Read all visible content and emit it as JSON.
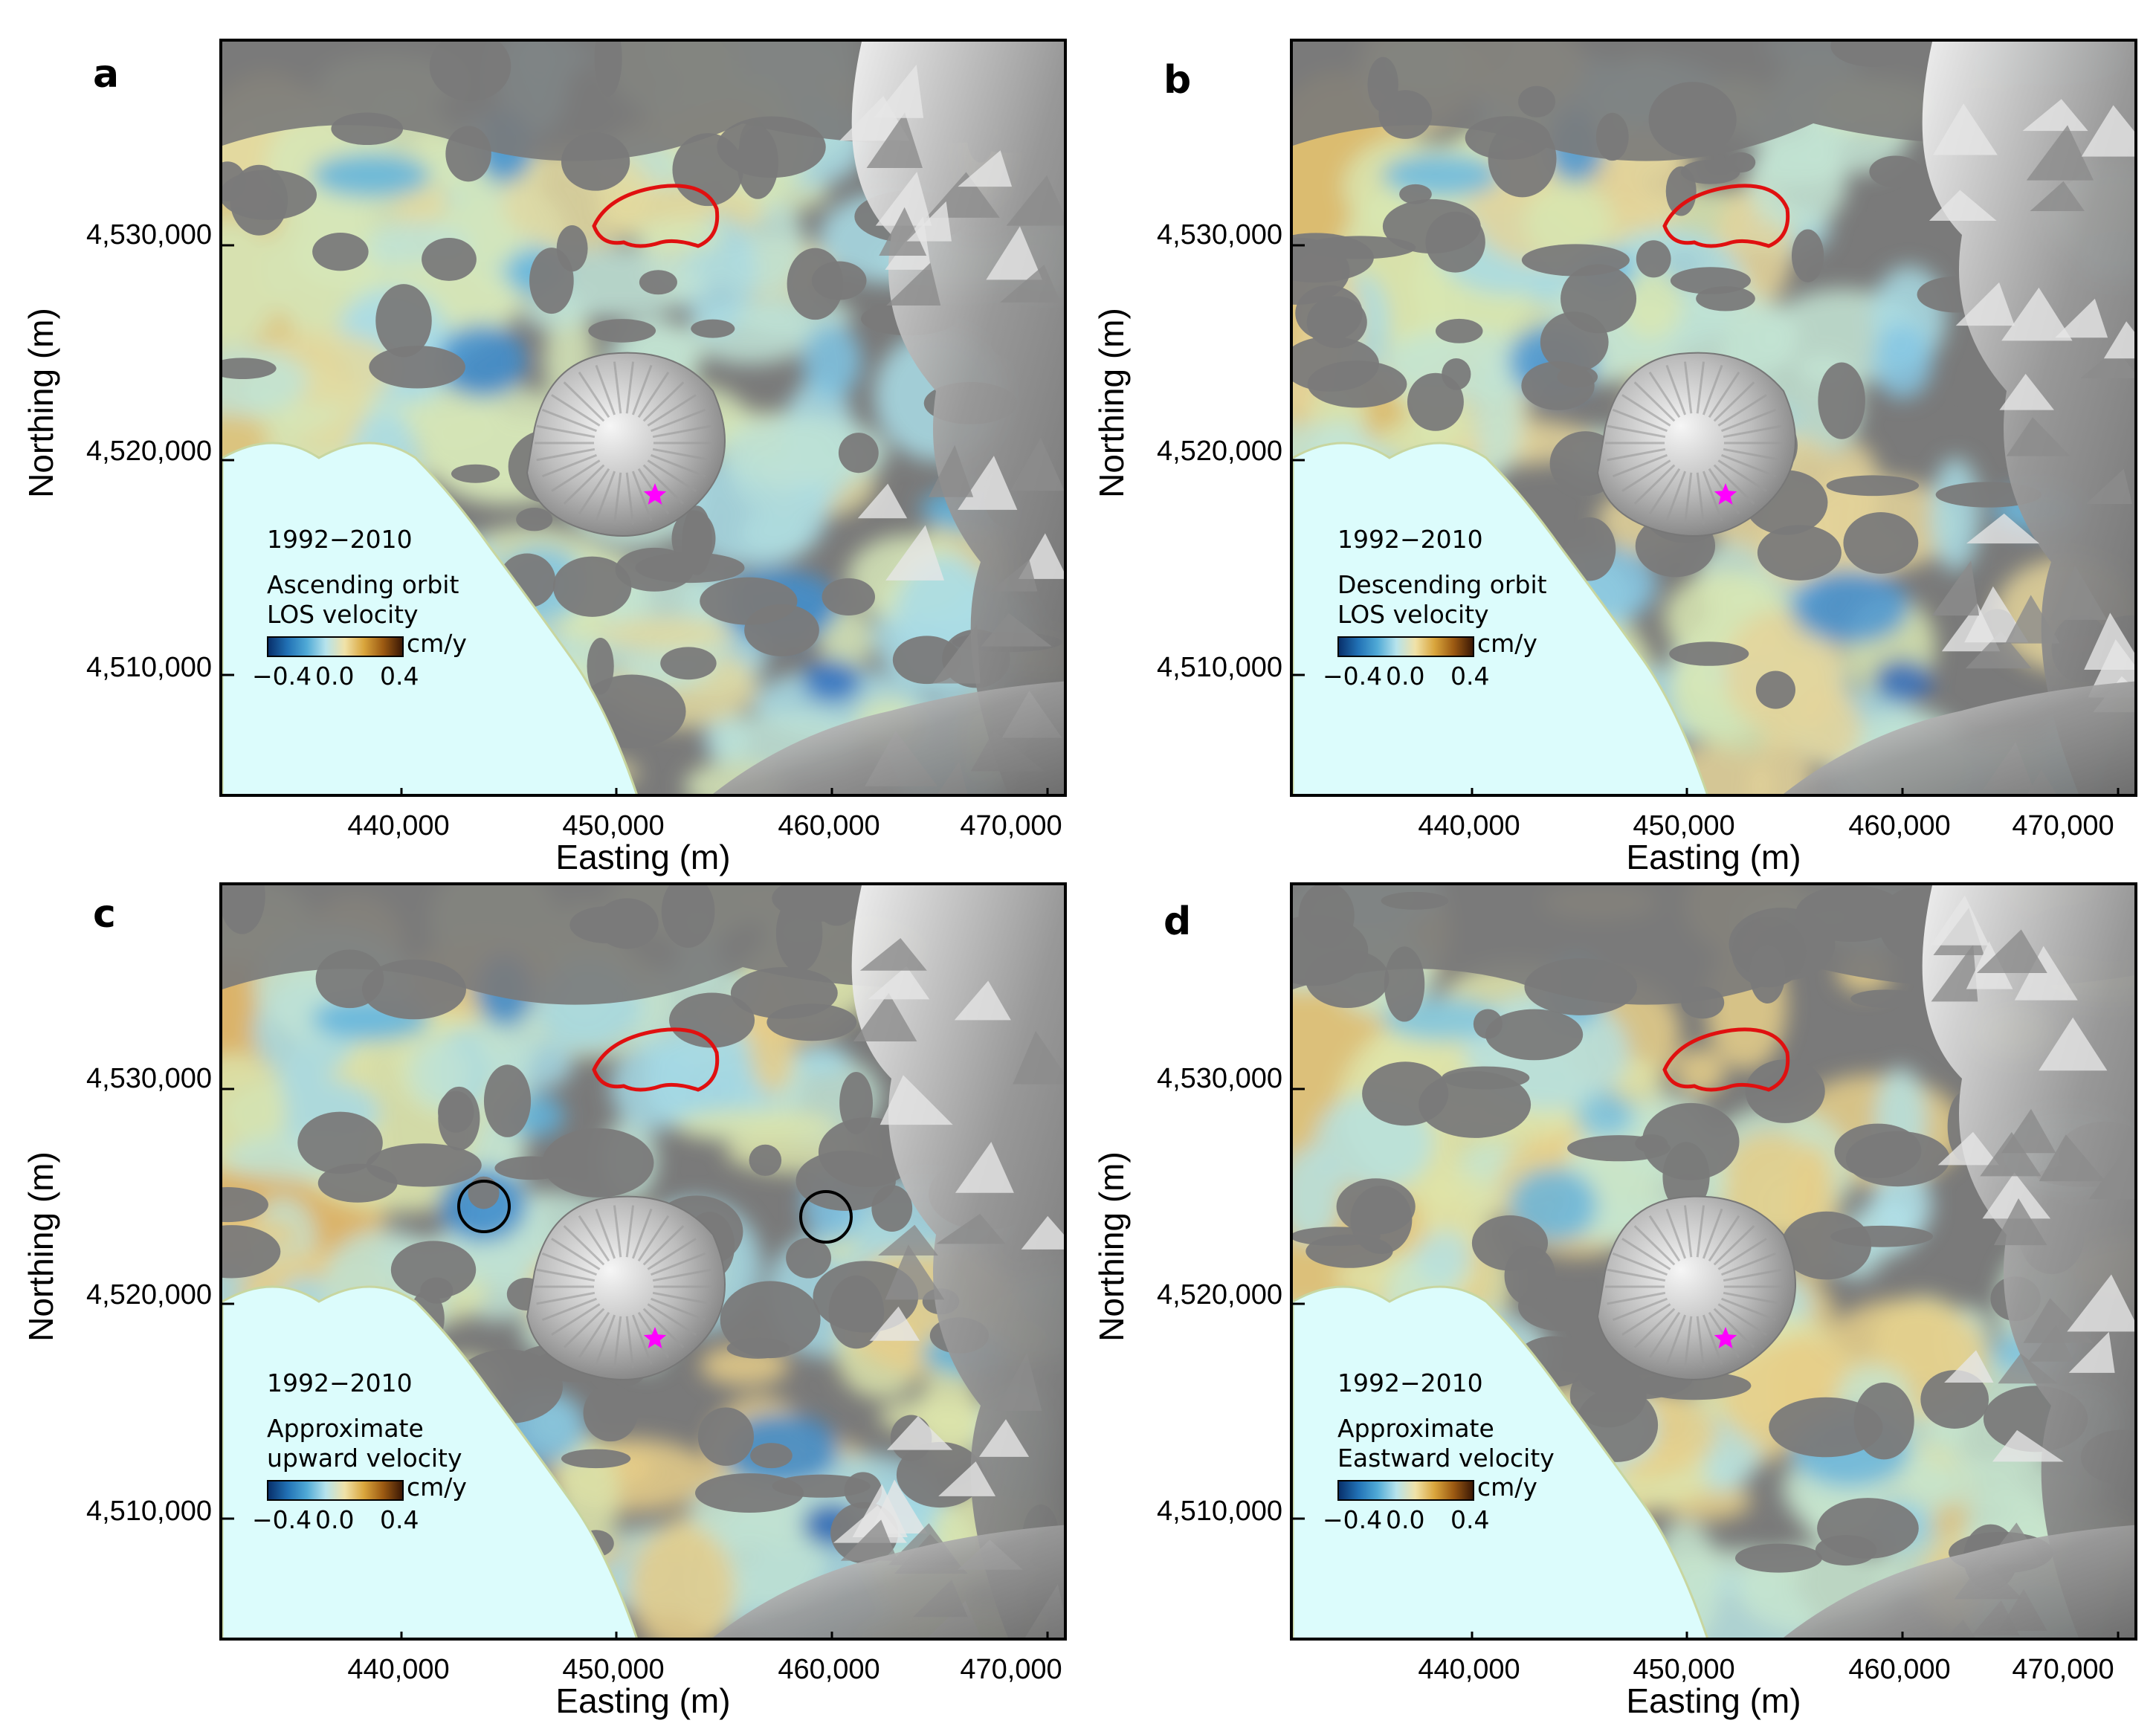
{
  "axes": {
    "x_label": "Easting (m)",
    "y_label": "Northing (m)",
    "x_ticks": [
      "440,000",
      "450,000",
      "460,000",
      "470,000"
    ],
    "y_ticks": [
      "4,530,000",
      "4,520,000",
      "4,510,000"
    ]
  },
  "colorbar": {
    "unit": "cm/y",
    "tick_labels": [
      "−0.4",
      "0.0",
      "0.4"
    ],
    "colors": [
      "#08306b",
      "#2171b5",
      "#4fa9d6",
      "#b6e3ec",
      "#f0e2a8",
      "#d9a53c",
      "#9c5a12",
      "#3b1805"
    ]
  },
  "panels": [
    {
      "letter": "a",
      "period": "1992−2010",
      "desc_line1": "Ascending orbit",
      "desc_line2": "LOS velocity",
      "mode": "ascending"
    },
    {
      "letter": "b",
      "period": "1992−2010",
      "desc_line1": "Descending orbit",
      "desc_line2": "LOS velocity",
      "mode": "descending"
    },
    {
      "letter": "c",
      "period": "1992−2010",
      "desc_line1": "Approximate",
      "desc_line2": "upward velocity",
      "mode": "upward"
    },
    {
      "letter": "d",
      "period": "1992−2010",
      "desc_line1": "Approximate",
      "desc_line2": "Eastward velocity",
      "mode": "eastward"
    }
  ],
  "colors": {
    "sea": "#dcfcfc",
    "no_data": "#7a7a7a",
    "caldera_outline": "#e01010",
    "vent_star": "#ff00ff",
    "circle_marker": "#000000"
  }
}
